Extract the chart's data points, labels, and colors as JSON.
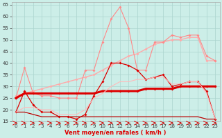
{
  "x": [
    0,
    1,
    2,
    3,
    4,
    5,
    6,
    7,
    8,
    9,
    10,
    11,
    12,
    13,
    14,
    15,
    16,
    17,
    18,
    19,
    20,
    21,
    22,
    23
  ],
  "background_color": "#cceee8",
  "grid_color": "#aad4ce",
  "xlabel": "Vent moyen/en rafales ( km/h )",
  "ylim": [
    15,
    66
  ],
  "yticks": [
    15,
    20,
    25,
    30,
    35,
    40,
    45,
    50,
    55,
    60,
    65
  ],
  "lines": [
    {
      "label": "pink_trend",
      "color": "#ffaaaa",
      "linewidth": 1.0,
      "marker": "D",
      "markersize": 2.0,
      "alpha": 1.0,
      "values": [
        26,
        27,
        28,
        29,
        30,
        31,
        32,
        33,
        34,
        35,
        37,
        39,
        41,
        43,
        44,
        46,
        48,
        49,
        50,
        50,
        51,
        51,
        41,
        41
      ]
    },
    {
      "label": "pink_rafales",
      "color": "#ff8888",
      "linewidth": 0.8,
      "marker": "D",
      "markersize": 2.0,
      "alpha": 1.0,
      "values": [
        25,
        38,
        27,
        26,
        26,
        25,
        25,
        25,
        37,
        37,
        49,
        59,
        64,
        55,
        37,
        37,
        49,
        49,
        52,
        51,
        52,
        52,
        43,
        41
      ]
    },
    {
      "label": "dark_red_thick",
      "color": "#dd0000",
      "linewidth": 2.2,
      "marker": "D",
      "markersize": 2.0,
      "alpha": 1.0,
      "values": [
        25,
        27,
        27,
        27,
        27,
        27,
        27,
        27,
        27,
        27,
        28,
        28,
        28,
        28,
        28,
        29,
        29,
        29,
        29,
        30,
        30,
        30,
        30,
        30
      ]
    },
    {
      "label": "dark_red_line2",
      "color": "#dd0000",
      "linewidth": 0.9,
      "marker": "D",
      "markersize": 2.0,
      "alpha": 1.0,
      "values": [
        19,
        28,
        22,
        19,
        19,
        17,
        17,
        16,
        18,
        26,
        32,
        40,
        40,
        39,
        37,
        33,
        34,
        35,
        30,
        31,
        32,
        32,
        28,
        16
      ]
    },
    {
      "label": "dark_red_flat",
      "color": "#bb0000",
      "linewidth": 0.9,
      "marker": null,
      "alpha": 1.0,
      "values": [
        19,
        19,
        18,
        17,
        17,
        17,
        17,
        17,
        17,
        17,
        17,
        17,
        17,
        17,
        17,
        17,
        17,
        17,
        17,
        17,
        17,
        17,
        16,
        16
      ]
    },
    {
      "label": "pink_light_line",
      "color": "#ffbbbb",
      "linewidth": 0.8,
      "marker": null,
      "alpha": 1.0,
      "values": [
        19,
        21,
        21,
        20,
        20,
        18,
        18,
        18,
        20,
        25,
        27,
        30,
        32,
        32,
        33,
        33,
        34,
        34,
        31,
        31,
        32,
        32,
        27,
        16
      ]
    }
  ],
  "arrow_color": "#dd0000",
  "axis_fontsize": 6,
  "tick_fontsize": 5,
  "xlabel_color": "#dd0000"
}
